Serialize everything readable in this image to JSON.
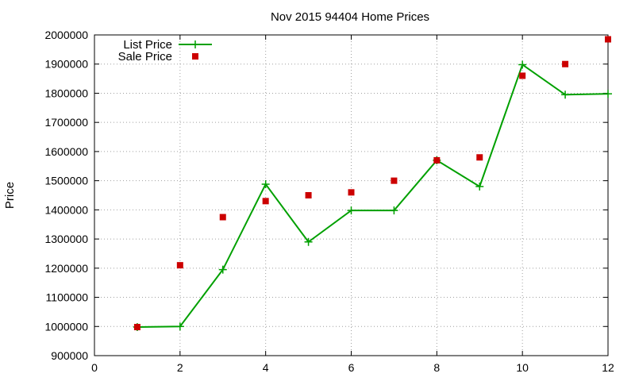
{
  "chart_data": {
    "type": "line",
    "title": "Nov 2015 94404 Home Prices",
    "xlabel": "",
    "ylabel": "Price",
    "xlim": [
      0,
      12
    ],
    "ylim": [
      900000,
      2000000
    ],
    "x_ticks": [
      0,
      2,
      4,
      6,
      8,
      10,
      12
    ],
    "y_ticks": [
      900000,
      1000000,
      1100000,
      1200000,
      1300000,
      1400000,
      1500000,
      1600000,
      1700000,
      1800000,
      1900000,
      2000000
    ],
    "x_tick_labels": [
      "0",
      "2",
      "4",
      "6",
      "8",
      "10",
      "12"
    ],
    "y_tick_labels": [
      "900000",
      "1000000",
      "1100000",
      "1200000",
      "1300000",
      "1400000",
      "1500000",
      "1600000",
      "1700000",
      "1800000",
      "1900000",
      "2000000"
    ],
    "grid": true,
    "legend_position": "top-left",
    "series": [
      {
        "name": "List Price",
        "style": "line-with-plus-markers",
        "color": "#00a000",
        "x": [
          1,
          2,
          3,
          4,
          5,
          6,
          7,
          8,
          9,
          10,
          11,
          12
        ],
        "values": [
          998000,
          1000000,
          1195000,
          1488000,
          1290000,
          1398000,
          1398000,
          1570000,
          1480000,
          1898000,
          1795000,
          1798000
        ]
      },
      {
        "name": "Sale Price",
        "style": "square-points",
        "color": "#cc0000",
        "x": [
          1,
          2,
          3,
          4,
          5,
          6,
          7,
          8,
          9,
          10,
          11,
          12
        ],
        "values": [
          998000,
          1210000,
          1375000,
          1430000,
          1450000,
          1460000,
          1500000,
          1570000,
          1580000,
          1860000,
          1900000,
          1985000
        ]
      }
    ]
  }
}
